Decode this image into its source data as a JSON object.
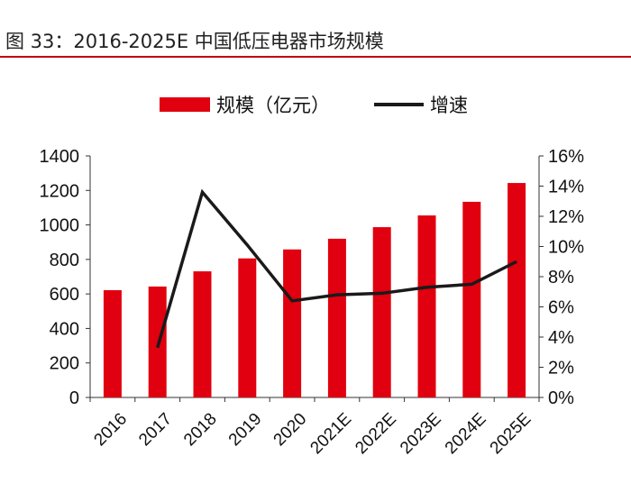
{
  "title": "图 33：2016-2025E 中国低压电器市场规模",
  "chart_data": {
    "type": "bar+line",
    "categories": [
      "2016",
      "2017",
      "2018",
      "2019",
      "2020",
      "2021E",
      "2022E",
      "2023E",
      "2024E",
      "2025E"
    ],
    "series": [
      {
        "name": "规模（亿元）",
        "type": "bar",
        "axis": "left",
        "color": "#e0000f",
        "values": [
          622,
          643,
          731,
          806,
          858,
          920,
          987,
          1055,
          1134,
          1243
        ]
      },
      {
        "name": "增速",
        "type": "line",
        "axis": "right",
        "color": "#1a1a1a",
        "values": [
          null,
          3.3,
          13.6,
          10.1,
          6.4,
          6.8,
          6.9,
          7.3,
          7.5,
          9.0
        ]
      }
    ],
    "left_axis": {
      "ylim": [
        0,
        1400
      ],
      "ticks": [
        "0",
        "200",
        "400",
        "600",
        "800",
        "1000",
        "1200",
        "1400"
      ]
    },
    "right_axis": {
      "ylim": [
        0,
        16
      ],
      "ticks": [
        "0%",
        "2%",
        "4%",
        "6%",
        "8%",
        "10%",
        "12%",
        "14%",
        "16%"
      ]
    },
    "legend": "top-center",
    "grid": false
  }
}
